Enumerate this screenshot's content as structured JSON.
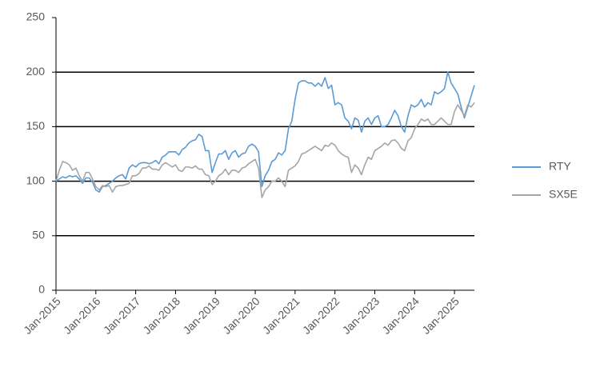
{
  "chart_data": {
    "type": "line",
    "x": [
      "2015-01",
      "2015-02",
      "2015-03",
      "2015-04",
      "2015-05",
      "2015-06",
      "2015-07",
      "2015-08",
      "2015-09",
      "2015-10",
      "2015-11",
      "2015-12",
      "2016-01",
      "2016-02",
      "2016-03",
      "2016-04",
      "2016-05",
      "2016-06",
      "2016-07",
      "2016-08",
      "2016-09",
      "2016-10",
      "2016-11",
      "2016-12",
      "2017-01",
      "2017-02",
      "2017-03",
      "2017-04",
      "2017-05",
      "2017-06",
      "2017-07",
      "2017-08",
      "2017-09",
      "2017-10",
      "2017-11",
      "2017-12",
      "2018-01",
      "2018-02",
      "2018-03",
      "2018-04",
      "2018-05",
      "2018-06",
      "2018-07",
      "2018-08",
      "2018-09",
      "2018-10",
      "2018-11",
      "2018-12",
      "2019-01",
      "2019-02",
      "2019-03",
      "2019-04",
      "2019-05",
      "2019-06",
      "2019-07",
      "2019-08",
      "2019-09",
      "2019-10",
      "2019-11",
      "2019-12",
      "2020-01",
      "2020-02",
      "2020-03",
      "2020-04",
      "2020-05",
      "2020-06",
      "2020-07",
      "2020-08",
      "2020-09",
      "2020-10",
      "2020-11",
      "2020-12",
      "2021-01",
      "2021-02",
      "2021-03",
      "2021-04",
      "2021-05",
      "2021-06",
      "2021-07",
      "2021-08",
      "2021-09",
      "2021-10",
      "2021-11",
      "2021-12",
      "2022-01",
      "2022-02",
      "2022-03",
      "2022-04",
      "2022-05",
      "2022-06",
      "2022-07",
      "2022-08",
      "2022-09",
      "2022-10",
      "2022-11",
      "2022-12",
      "2023-01",
      "2023-02",
      "2023-03",
      "2023-04",
      "2023-05",
      "2023-06",
      "2023-07",
      "2023-08",
      "2023-09",
      "2023-10",
      "2023-11",
      "2023-12",
      "2024-01",
      "2024-02",
      "2024-03",
      "2024-04",
      "2024-05",
      "2024-06",
      "2024-07",
      "2024-08",
      "2024-09",
      "2024-10",
      "2024-11",
      "2024-12",
      "2025-01",
      "2025-02",
      "2025-03",
      "2025-04",
      "2025-05",
      "2025-06",
      "2025-07"
    ],
    "series": [
      {
        "name": "RTY",
        "color": "#5b9bd5",
        "values": [
          100,
          102,
          104,
          103,
          105,
          104,
          105,
          102,
          98,
          103,
          103,
          99,
          92,
          90,
          95,
          96,
          98,
          100,
          103,
          105,
          106,
          102,
          112,
          115,
          113,
          116,
          117,
          117,
          116,
          117,
          119,
          116,
          122,
          124,
          127,
          127,
          127,
          124,
          129,
          131,
          135,
          137,
          138,
          143,
          141,
          128,
          128,
          108,
          117,
          125,
          125,
          128,
          120,
          126,
          128,
          122,
          125,
          126,
          132,
          134,
          132,
          127,
          95,
          105,
          110,
          118,
          120,
          126,
          124,
          128,
          148,
          155,
          175,
          190,
          192,
          192,
          190,
          190,
          187,
          190,
          187,
          195,
          185,
          188,
          170,
          172,
          170,
          158,
          155,
          148,
          158,
          156,
          145,
          155,
          158,
          152,
          158,
          160,
          150,
          150,
          152,
          158,
          165,
          160,
          150,
          145,
          160,
          170,
          168,
          170,
          175,
          168,
          172,
          170,
          182,
          180,
          182,
          185,
          200,
          190,
          185,
          180,
          168,
          158,
          168,
          178,
          188
        ]
      },
      {
        "name": "SX5E",
        "color": "#a5a5a5",
        "values": [
          100,
          110,
          118,
          117,
          115,
          110,
          112,
          105,
          100,
          108,
          108,
          102,
          95,
          92,
          96,
          95,
          96,
          90,
          95,
          96,
          96,
          97,
          98,
          105,
          105,
          107,
          112,
          112,
          114,
          111,
          111,
          110,
          115,
          117,
          115,
          113,
          115,
          110,
          109,
          113,
          113,
          112,
          114,
          111,
          111,
          106,
          105,
          97,
          100,
          105,
          107,
          111,
          106,
          110,
          110,
          108,
          112,
          113,
          116,
          118,
          120,
          112,
          85,
          92,
          95,
          100,
          100,
          103,
          100,
          95,
          110,
          112,
          114,
          118,
          125,
          126,
          128,
          130,
          132,
          130,
          128,
          133,
          132,
          135,
          133,
          128,
          125,
          123,
          122,
          108,
          115,
          112,
          106,
          115,
          122,
          120,
          128,
          130,
          132,
          135,
          133,
          137,
          138,
          135,
          130,
          128,
          137,
          140,
          148,
          152,
          157,
          155,
          157,
          152,
          152,
          155,
          158,
          155,
          152,
          152,
          164,
          170,
          165,
          160,
          170,
          168,
          172
        ]
      }
    ],
    "ylim": [
      0,
      250
    ],
    "yticks": [
      0,
      50,
      100,
      150,
      200,
      250
    ],
    "xticks": [
      {
        "value": "2015-01",
        "label": "Jan-2015"
      },
      {
        "value": "2016-01",
        "label": "Jan-2016"
      },
      {
        "value": "2017-01",
        "label": "Jan-2017"
      },
      {
        "value": "2018-01",
        "label": "Jan-2018"
      },
      {
        "value": "2019-01",
        "label": "Jan-2019"
      },
      {
        "value": "2020-01",
        "label": "Jan-2020"
      },
      {
        "value": "2021-01",
        "label": "Jan-2021"
      },
      {
        "value": "2022-01",
        "label": "Jan-2022"
      },
      {
        "value": "2023-01",
        "label": "Jan-2023"
      },
      {
        "value": "2024-01",
        "label": "Jan-2024"
      },
      {
        "value": "2025-01",
        "label": "Jan-2025"
      }
    ],
    "grid": true,
    "legend": "right"
  }
}
